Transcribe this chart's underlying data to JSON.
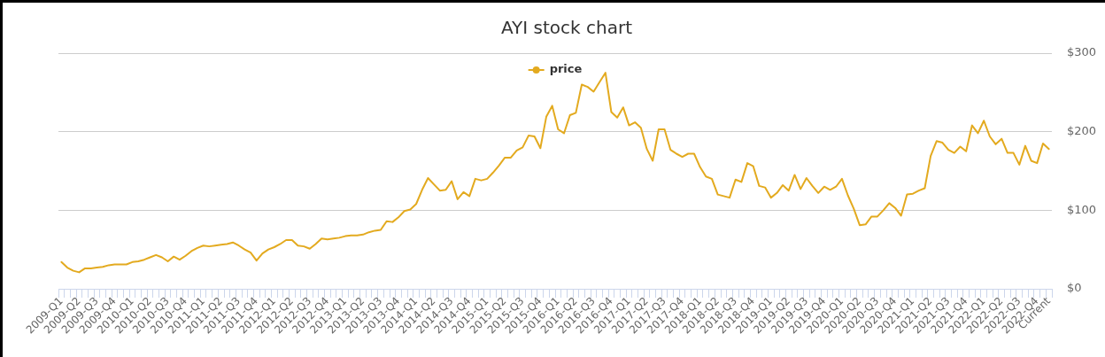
{
  "chart_data": {
    "type": "line",
    "title": "AYI stock chart",
    "categories": [
      "2009-Q1",
      null,
      null,
      "2009-Q2",
      null,
      null,
      "2009-Q3",
      null,
      null,
      "2009-Q4",
      null,
      null,
      "2010-Q1",
      null,
      null,
      "2010-Q2",
      null,
      null,
      "2010-Q3",
      null,
      null,
      "2010-Q4",
      null,
      null,
      "2011-Q1",
      null,
      null,
      "2011-Q2",
      null,
      null,
      "2011-Q3",
      null,
      null,
      "2011-Q4",
      null,
      null,
      "2012-Q1",
      null,
      null,
      "2012-Q2",
      null,
      null,
      "2012-Q3",
      null,
      null,
      "2012-Q4",
      null,
      null,
      "2013-Q1",
      null,
      null,
      "2013-Q2",
      null,
      null,
      "2013-Q3",
      null,
      null,
      "2013-Q4",
      null,
      null,
      "2014-Q1",
      null,
      null,
      "2014-Q2",
      null,
      null,
      "2014-Q3",
      null,
      null,
      "2014-Q4",
      null,
      null,
      "2015-Q1",
      null,
      null,
      "2015-Q2",
      null,
      null,
      "2015-Q3",
      null,
      null,
      "2015-Q4",
      null,
      null,
      "2016-Q1",
      null,
      null,
      "2016-Q2",
      null,
      null,
      "2016-Q3",
      null,
      null,
      "2016-Q4",
      null,
      null,
      "2017-Q1",
      null,
      null,
      "2017-Q2",
      null,
      null,
      "2017-Q3",
      null,
      null,
      "2017-Q4",
      null,
      null,
      "2018-Q1",
      null,
      null,
      "2018-Q2",
      null,
      null,
      "2018-Q3",
      null,
      null,
      "2018-Q4",
      null,
      null,
      "2019-Q1",
      null,
      null,
      "2019-Q2",
      null,
      null,
      "2019-Q3",
      null,
      null,
      "2019-Q4",
      null,
      null,
      "2020-Q1",
      null,
      null,
      "2020-Q2",
      null,
      null,
      "2020-Q3",
      null,
      null,
      "2020-Q4",
      null,
      null,
      "2021-Q1",
      null,
      null,
      "2021-Q2",
      null,
      null,
      "2021-Q3",
      null,
      null,
      "2021-Q4",
      null,
      null,
      "2022-Q1",
      null,
      null,
      "2022-Q2",
      null,
      null,
      "2022-Q3",
      null,
      null,
      "2022-Q4",
      null,
      "Current"
    ],
    "series": [
      {
        "name": "price",
        "color": "#e3aa1f",
        "values": [
          34,
          27,
          23,
          21,
          26,
          26,
          27,
          28,
          30,
          31,
          31,
          31,
          34,
          35,
          37,
          40,
          43,
          40,
          35,
          41,
          37,
          42,
          48,
          52,
          55,
          54,
          55,
          56,
          57,
          59,
          55,
          50,
          46,
          36,
          45,
          50,
          53,
          57,
          62,
          62,
          55,
          54,
          51,
          57,
          64,
          63,
          64,
          65,
          67,
          68,
          68,
          69,
          72,
          74,
          75,
          86,
          85,
          91,
          99,
          101,
          108,
          126,
          141,
          133,
          125,
          126,
          137,
          114,
          123,
          118,
          140,
          138,
          140,
          148,
          157,
          167,
          167,
          176,
          180,
          195,
          194,
          179,
          219,
          233,
          203,
          198,
          221,
          224,
          260,
          257,
          251,
          263,
          275,
          225,
          218,
          231,
          208,
          212,
          205,
          178,
          163,
          203,
          203,
          177,
          172,
          168,
          172,
          172,
          155,
          143,
          140,
          120,
          118,
          116,
          139,
          136,
          160,
          156,
          131,
          129,
          116,
          122,
          132,
          125,
          145,
          127,
          141,
          131,
          122,
          130,
          126,
          130,
          140,
          119,
          102,
          81,
          82,
          92,
          92,
          100,
          109,
          103,
          93,
          120,
          121,
          125,
          128,
          169,
          188,
          186,
          177,
          173,
          181,
          175,
          208,
          198,
          214,
          194,
          184,
          191,
          173,
          173,
          158,
          182,
          163,
          160,
          185,
          178
        ]
      }
    ],
    "ylim": [
      0,
      300
    ],
    "yticks": [
      {
        "value": 0,
        "label": "$0"
      },
      {
        "value": 100,
        "label": "$100"
      },
      {
        "value": 200,
        "label": "$200"
      },
      {
        "value": 300,
        "label": "$300"
      }
    ],
    "grid": "y",
    "legend": "top",
    "marker": "none"
  }
}
